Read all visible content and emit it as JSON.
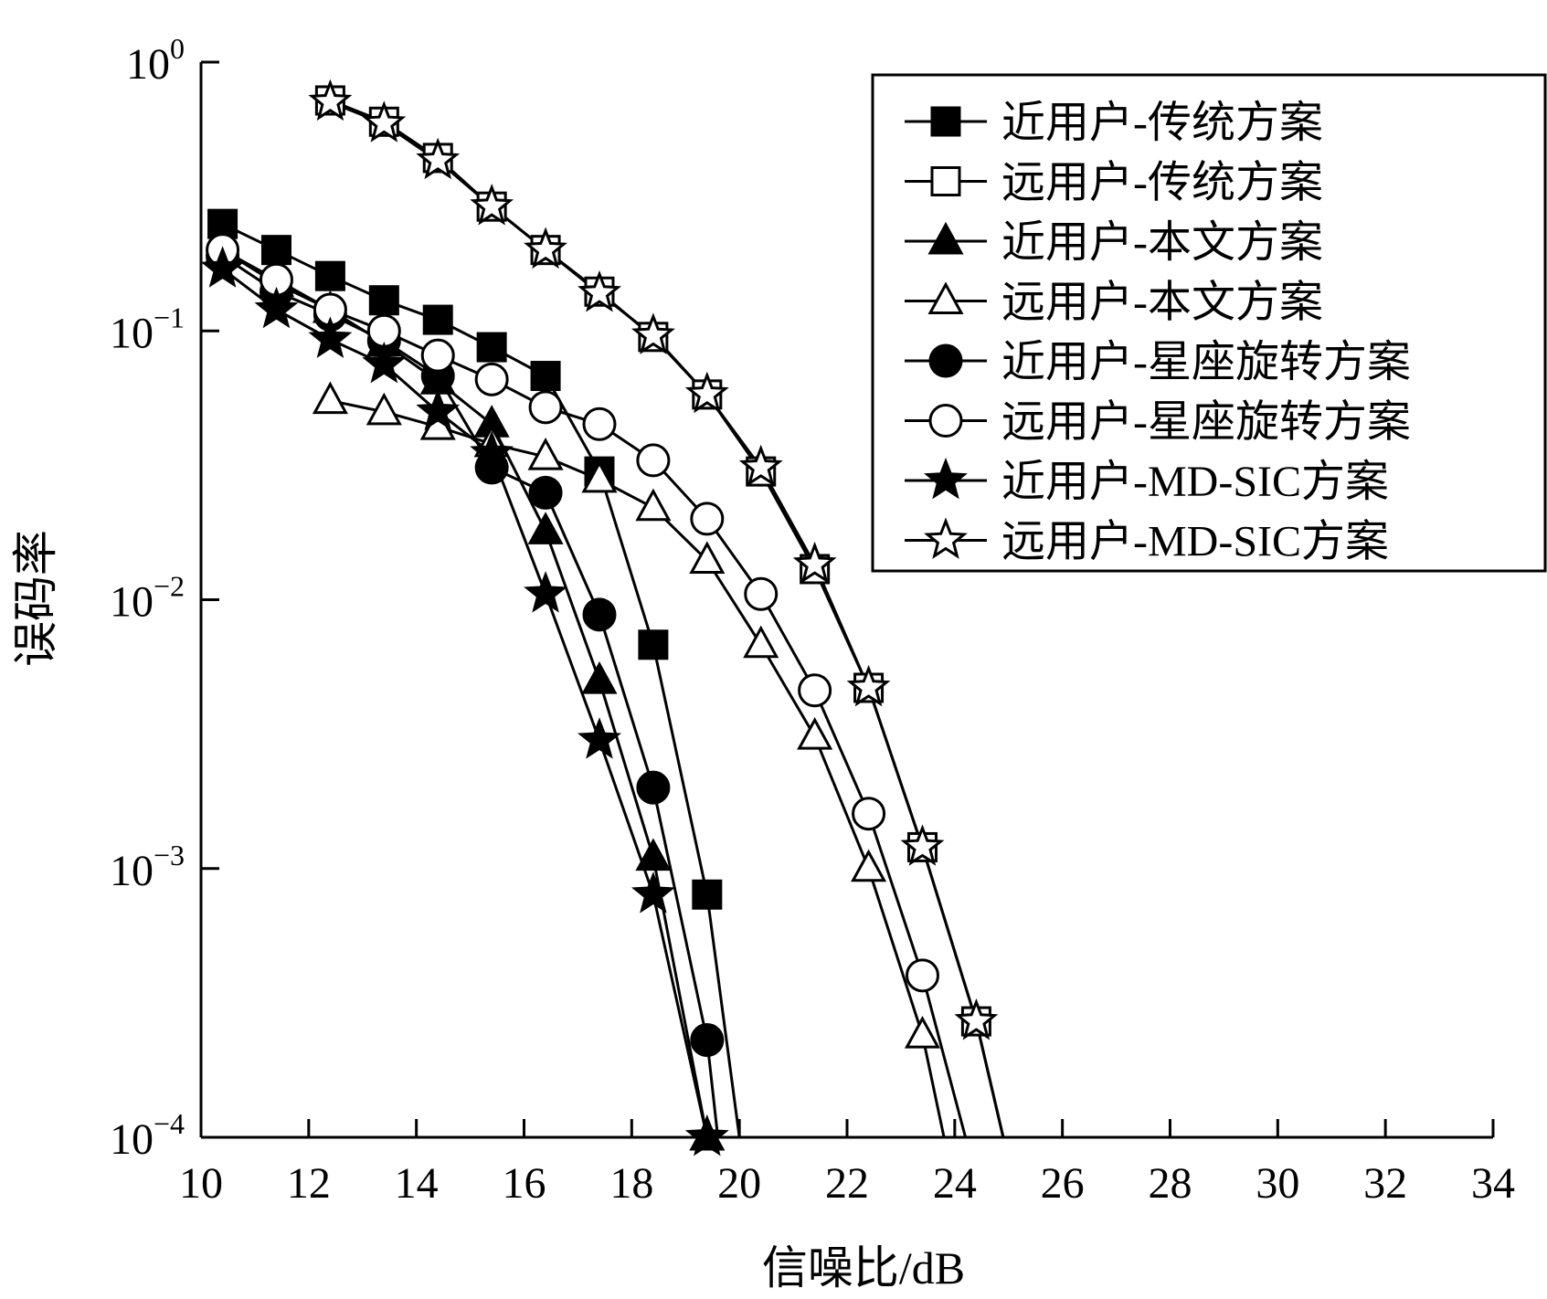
{
  "chart_data": {
    "type": "line",
    "title": "",
    "xlabel": "信噪比/dB",
    "ylabel": "误码率",
    "xlim": [
      10,
      34
    ],
    "ylim": [
      0.0001,
      1
    ],
    "yscale": "log",
    "x_ticks": [
      10,
      12,
      14,
      16,
      18,
      20,
      22,
      24,
      26,
      28,
      30,
      32,
      34
    ],
    "x_tick_labels": [
      "10",
      "12",
      "14",
      "16",
      "18",
      "20",
      "22",
      "24",
      "26",
      "28",
      "30",
      "32",
      "34"
    ],
    "y_ticks": [
      {
        "value": 1,
        "base": "10",
        "exp": "0"
      },
      {
        "value": 0.1,
        "base": "10",
        "exp": "−1"
      },
      {
        "value": 0.01,
        "base": "10",
        "exp": "−2"
      },
      {
        "value": 0.001,
        "base": "10",
        "exp": "−3"
      },
      {
        "value": 0.0001,
        "base": "10",
        "exp": "−4"
      }
    ],
    "grid": false,
    "legend_position": "top-right",
    "series": [
      {
        "name": "近用户-传统方案",
        "marker": "square-filled",
        "x": [
          10.4,
          11.4,
          12.4,
          13.4,
          14.4,
          15.4,
          16.4,
          17.4,
          18.4,
          19.4
        ],
        "y": [
          0.25,
          0.2,
          0.16,
          0.13,
          0.11,
          0.087,
          0.068,
          0.03,
          0.0068,
          0.0008
        ],
        "line_x": [
          10.4,
          11.4,
          12.4,
          13.4,
          14.4,
          15.4,
          16.4,
          17.4,
          18.4,
          19.4,
          20.0
        ],
        "line_y": [
          0.25,
          0.2,
          0.16,
          0.13,
          0.11,
          0.087,
          0.068,
          0.03,
          0.0068,
          0.0008,
          0.0001
        ]
      },
      {
        "name": "远用户-传统方案",
        "marker": "square-open",
        "x": [
          12.4,
          13.4,
          14.4,
          15.4,
          16.4,
          17.4,
          18.4,
          19.4,
          20.4,
          21.4,
          22.4,
          23.4,
          24.4
        ],
        "y": [
          0.72,
          0.6,
          0.44,
          0.29,
          0.2,
          0.14,
          0.095,
          0.058,
          0.03,
          0.013,
          0.0047,
          0.0012,
          0.00027
        ],
        "line_x": [
          12.4,
          13.4,
          14.4,
          15.4,
          16.4,
          17.4,
          18.4,
          19.4,
          20.4,
          21.4,
          22.4,
          23.4,
          24.4,
          24.9
        ],
        "line_y": [
          0.72,
          0.6,
          0.44,
          0.29,
          0.2,
          0.14,
          0.095,
          0.058,
          0.03,
          0.013,
          0.0047,
          0.0012,
          0.00027,
          0.0001
        ]
      },
      {
        "name": "近用户-本文方案",
        "marker": "triangle-filled",
        "x": [
          10.4,
          11.4,
          12.4,
          13.4,
          14.4,
          15.4,
          16.4,
          17.4,
          18.4,
          19.4
        ],
        "y": [
          0.2,
          0.15,
          0.12,
          0.09,
          0.065,
          0.045,
          0.018,
          0.005,
          0.0011,
          0.0001
        ],
        "line_x": [
          10.4,
          11.4,
          12.4,
          13.4,
          14.4,
          15.4,
          16.4,
          17.4,
          18.4,
          19.4
        ],
        "line_y": [
          0.2,
          0.15,
          0.12,
          0.09,
          0.065,
          0.045,
          0.018,
          0.005,
          0.0011,
          0.0001
        ]
      },
      {
        "name": "远用户-本文方案",
        "marker": "triangle-open",
        "x": [
          12.4,
          13.4,
          14.4,
          15.4,
          16.4,
          17.4,
          18.4,
          19.4,
          20.4,
          21.4,
          22.4,
          23.4
        ],
        "y": [
          0.055,
          0.05,
          0.044,
          0.038,
          0.034,
          0.028,
          0.022,
          0.014,
          0.0068,
          0.0031,
          0.001,
          0.00024
        ],
        "line_x": [
          12.4,
          13.4,
          14.4,
          15.4,
          16.4,
          17.4,
          18.4,
          19.4,
          20.4,
          21.4,
          22.4,
          23.4,
          23.8
        ],
        "line_y": [
          0.055,
          0.05,
          0.044,
          0.038,
          0.034,
          0.028,
          0.022,
          0.014,
          0.0068,
          0.0031,
          0.001,
          0.00024,
          0.0001
        ]
      },
      {
        "name": "近用户-星座旋转方案",
        "marker": "circle-filled",
        "x": [
          10.4,
          11.4,
          12.4,
          13.4,
          14.4,
          15.4,
          16.4,
          17.4,
          18.4,
          19.4
        ],
        "y": [
          0.19,
          0.14,
          0.115,
          0.092,
          0.068,
          0.031,
          0.025,
          0.0088,
          0.002,
          0.00023
        ],
        "line_x": [
          10.4,
          11.4,
          12.4,
          13.4,
          14.4,
          15.4,
          16.4,
          17.4,
          18.4,
          19.4,
          19.6
        ],
        "line_y": [
          0.19,
          0.14,
          0.115,
          0.092,
          0.068,
          0.031,
          0.025,
          0.0088,
          0.002,
          0.00023,
          0.0001
        ]
      },
      {
        "name": "远用户-星座旋转方案",
        "marker": "circle-open",
        "x": [
          10.4,
          11.4,
          12.4,
          13.4,
          14.4,
          15.4,
          16.4,
          17.4,
          18.4,
          19.4,
          20.4,
          21.4,
          22.4,
          23.4
        ],
        "y": [
          0.2,
          0.155,
          0.12,
          0.1,
          0.081,
          0.066,
          0.052,
          0.045,
          0.033,
          0.02,
          0.0105,
          0.0046,
          0.0016,
          0.0004
        ],
        "line_x": [
          10.4,
          11.4,
          12.4,
          13.4,
          14.4,
          15.4,
          16.4,
          17.4,
          18.4,
          19.4,
          20.4,
          21.4,
          22.4,
          23.4,
          24.2
        ],
        "line_y": [
          0.2,
          0.155,
          0.12,
          0.1,
          0.081,
          0.066,
          0.052,
          0.045,
          0.033,
          0.02,
          0.0105,
          0.0046,
          0.0016,
          0.0004,
          0.0001
        ]
      },
      {
        "name": "近用户-MD-SIC方案",
        "marker": "star-filled",
        "x": [
          10.4,
          11.4,
          12.4,
          13.4,
          14.4,
          15.4,
          16.4,
          17.4,
          18.4,
          19.4
        ],
        "y": [
          0.17,
          0.12,
          0.093,
          0.075,
          0.05,
          0.035,
          0.0105,
          0.003,
          0.0008,
          0.0001
        ],
        "line_x": [
          10.4,
          11.4,
          12.4,
          13.4,
          14.4,
          15.4,
          16.4,
          17.4,
          18.4,
          19.4
        ],
        "line_y": [
          0.17,
          0.12,
          0.093,
          0.075,
          0.05,
          0.035,
          0.0105,
          0.003,
          0.0008,
          0.0001
        ]
      },
      {
        "name": "远用户-MD-SIC方案",
        "marker": "star-open",
        "x": [
          12.4,
          13.4,
          14.4,
          15.4,
          16.4,
          17.4,
          18.4,
          19.4,
          20.4,
          21.4,
          22.4,
          23.4,
          24.4
        ],
        "y": [
          0.71,
          0.59,
          0.43,
          0.29,
          0.2,
          0.138,
          0.096,
          0.058,
          0.031,
          0.0135,
          0.0047,
          0.0012,
          0.00027
        ],
        "line_x": [
          12.4,
          13.4,
          14.4,
          15.4,
          16.4,
          17.4,
          18.4,
          19.4,
          20.4,
          21.4,
          22.4,
          23.4,
          24.4,
          24.9
        ],
        "line_y": [
          0.71,
          0.59,
          0.43,
          0.29,
          0.2,
          0.138,
          0.096,
          0.058,
          0.031,
          0.0135,
          0.0047,
          0.0012,
          0.00027,
          0.0001
        ]
      }
    ]
  }
}
